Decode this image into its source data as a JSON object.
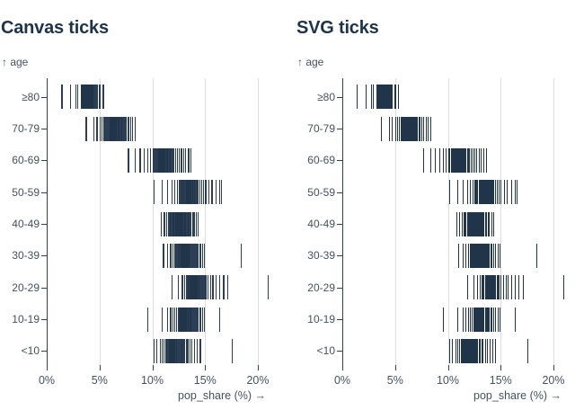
{
  "page": {
    "background": "#ffffff"
  },
  "charts": [
    {
      "title": "Canvas ticks"
    },
    {
      "title": "SVG ticks"
    }
  ],
  "axes": {
    "y_label": "↑ age",
    "x_label": "pop_share (%) →",
    "x_tick_labels": [
      "0%",
      "5%",
      "10%",
      "15%",
      "20%"
    ],
    "x_tick_values": [
      0,
      5,
      10,
      15,
      20
    ],
    "x_domain": [
      0,
      21
    ],
    "y_categories": [
      "≥80",
      "70-79",
      "60-69",
      "50-59",
      "40-49",
      "30-39",
      "20-29",
      "10-19",
      "<10"
    ]
  },
  "colors": {
    "title": "#1c3349",
    "tick": "#20344a",
    "axis": "#33424f",
    "axis_text": "#44525f",
    "grid": "#dedede"
  },
  "chart_data": {
    "type": "tick",
    "description": "Two identical strip (barcode) plots of state population share by age group; left rendered with canvas ticks, right with SVG ticks. Each tick is one state's pop_share (%) for that age band.",
    "xlabel": "pop_share (%) →",
    "ylabel": "↑ age",
    "xlim": [
      0,
      21
    ],
    "grid": true,
    "categories": [
      "≥80",
      "70-79",
      "60-69",
      "50-59",
      "40-49",
      "30-39",
      "20-29",
      "10-19",
      "<10"
    ],
    "groups": [
      {
        "age": "≥80",
        "values": [
          1.4,
          2.2,
          2.7,
          2.9,
          3.2,
          3.25,
          3.3,
          3.35,
          3.4,
          3.45,
          3.5,
          3.55,
          3.6,
          3.65,
          3.7,
          3.75,
          3.8,
          3.85,
          3.9,
          3.95,
          4.0,
          4.05,
          4.1,
          4.15,
          4.2,
          4.25,
          4.3,
          4.35,
          4.4,
          4.5,
          4.6,
          4.7,
          4.9,
          5.0,
          5.3
        ]
      },
      {
        "age": "70-79",
        "values": [
          3.7,
          4.4,
          4.7,
          5.0,
          5.2,
          5.4,
          5.5,
          5.6,
          5.7,
          5.8,
          5.9,
          5.95,
          6.0,
          6.05,
          6.1,
          6.15,
          6.2,
          6.25,
          6.3,
          6.35,
          6.4,
          6.45,
          6.5,
          6.55,
          6.6,
          6.7,
          6.75,
          6.8,
          6.9,
          7.0,
          7.1,
          7.2,
          7.35,
          7.5,
          7.7,
          7.9,
          8.1,
          8.3
        ]
      },
      {
        "age": "60-69",
        "values": [
          7.7,
          8.3,
          8.8,
          9.2,
          9.5,
          9.8,
          10.0,
          10.15,
          10.3,
          10.4,
          10.5,
          10.55,
          10.6,
          10.65,
          10.7,
          10.75,
          10.8,
          10.85,
          10.9,
          10.95,
          11.0,
          11.05,
          11.1,
          11.15,
          11.2,
          11.3,
          11.35,
          11.4,
          11.5,
          11.6,
          11.7,
          11.8,
          11.9,
          12.0,
          12.15,
          12.3,
          12.5,
          12.7,
          12.9,
          13.1,
          13.4,
          13.6
        ]
      },
      {
        "age": "50-59",
        "values": [
          10.1,
          10.9,
          11.4,
          11.8,
          12.1,
          12.3,
          12.5,
          12.6,
          12.7,
          12.8,
          12.9,
          12.95,
          13.0,
          13.1,
          13.15,
          13.2,
          13.25,
          13.3,
          13.35,
          13.4,
          13.45,
          13.5,
          13.55,
          13.6,
          13.7,
          13.75,
          13.8,
          13.9,
          13.95,
          14.0,
          14.1,
          14.2,
          14.3,
          14.45,
          14.6,
          14.8,
          15.0,
          15.3,
          15.6,
          16.0,
          16.3,
          16.5
        ]
      },
      {
        "age": "40-49",
        "values": [
          10.8,
          11.1,
          11.3,
          11.5,
          11.6,
          11.7,
          11.8,
          11.9,
          11.95,
          12.0,
          12.1,
          12.15,
          12.2,
          12.25,
          12.3,
          12.35,
          12.4,
          12.45,
          12.5,
          12.55,
          12.6,
          12.65,
          12.7,
          12.75,
          12.8,
          12.85,
          12.9,
          13.0,
          13.05,
          13.1,
          13.2,
          13.3,
          13.4,
          13.5,
          13.6,
          13.75,
          13.9,
          14.1,
          14.3
        ]
      },
      {
        "age": "30-39",
        "values": [
          11.0,
          11.4,
          11.7,
          11.9,
          12.05,
          12.15,
          12.25,
          12.35,
          12.45,
          12.5,
          12.6,
          12.65,
          12.7,
          12.75,
          12.8,
          12.85,
          12.9,
          12.95,
          13.0,
          13.05,
          13.1,
          13.15,
          13.2,
          13.25,
          13.3,
          13.4,
          13.45,
          13.5,
          13.6,
          13.7,
          13.8,
          13.9,
          14.0,
          14.15,
          14.3,
          14.5,
          14.7,
          14.9,
          18.4
        ]
      },
      {
        "age": "20-29",
        "values": [
          11.8,
          12.4,
          12.8,
          13.0,
          13.15,
          13.3,
          13.4,
          13.5,
          13.55,
          13.6,
          13.65,
          13.7,
          13.75,
          13.8,
          13.85,
          13.9,
          13.95,
          14.0,
          14.05,
          14.1,
          14.15,
          14.2,
          14.3,
          14.35,
          14.4,
          14.5,
          14.6,
          14.7,
          14.85,
          15.0,
          15.2,
          15.45,
          15.7,
          16.0,
          16.35,
          16.7,
          17.1,
          20.9
        ]
      },
      {
        "age": "10-19",
        "values": [
          9.5,
          10.9,
          11.4,
          11.7,
          11.9,
          12.1,
          12.25,
          12.4,
          12.5,
          12.55,
          12.6,
          12.65,
          12.7,
          12.75,
          12.8,
          12.85,
          12.9,
          12.95,
          13.0,
          13.05,
          13.1,
          13.15,
          13.2,
          13.3,
          13.35,
          13.4,
          13.5,
          13.55,
          13.6,
          13.7,
          13.8,
          13.9,
          14.0,
          14.15,
          14.3,
          14.5,
          14.7,
          14.9,
          16.3
        ]
      },
      {
        "age": "<10",
        "values": [
          10.1,
          10.4,
          10.7,
          10.9,
          11.05,
          11.2,
          11.3,
          11.4,
          11.5,
          11.55,
          11.6,
          11.65,
          11.7,
          11.75,
          11.8,
          11.85,
          11.9,
          11.95,
          12.0,
          12.05,
          12.1,
          12.2,
          12.25,
          12.3,
          12.4,
          12.5,
          12.6,
          12.7,
          12.8,
          12.9,
          13.0,
          13.15,
          13.3,
          13.5,
          13.7,
          13.95,
          14.2,
          14.5,
          17.5
        ]
      }
    ]
  }
}
